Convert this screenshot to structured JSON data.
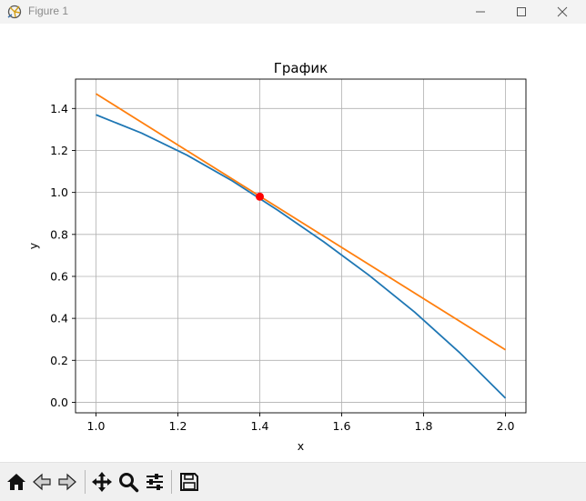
{
  "window": {
    "title": "Figure 1",
    "icons": [
      "app-icon",
      "minimize-icon",
      "maximize-icon",
      "close-icon"
    ]
  },
  "toolbar": {
    "buttons": [
      "home-icon",
      "back-icon",
      "forward-icon",
      "pan-icon",
      "zoom-icon",
      "configure-icon",
      "save-icon"
    ]
  },
  "chart_data": {
    "type": "line",
    "title": "График",
    "xlabel": "x",
    "ylabel": "y",
    "xlim": [
      0.95,
      2.05
    ],
    "ylim": [
      -0.05,
      1.54
    ],
    "xticks": [
      "1.0",
      "1.2",
      "1.4",
      "1.6",
      "1.8",
      "2.0"
    ],
    "yticks": [
      "0.0",
      "0.2",
      "0.4",
      "0.6",
      "0.8",
      "1.0",
      "1.2",
      "1.4"
    ],
    "grid": true,
    "series": [
      {
        "color": "#1f77b4",
        "x": [
          1.0,
          1.111,
          1.222,
          1.333,
          1.444,
          1.556,
          1.667,
          1.778,
          1.889,
          2.0
        ],
        "y": [
          1.37,
          1.283,
          1.178,
          1.055,
          0.915,
          0.765,
          0.605,
          0.43,
          0.235,
          0.02
        ]
      },
      {
        "color": "#ff7f0e",
        "x": [
          1.0,
          2.0
        ],
        "y": [
          1.47,
          0.25
        ]
      }
    ],
    "points": [
      {
        "x": 1.4,
        "y": 0.98,
        "color": "#ff0000"
      }
    ]
  }
}
